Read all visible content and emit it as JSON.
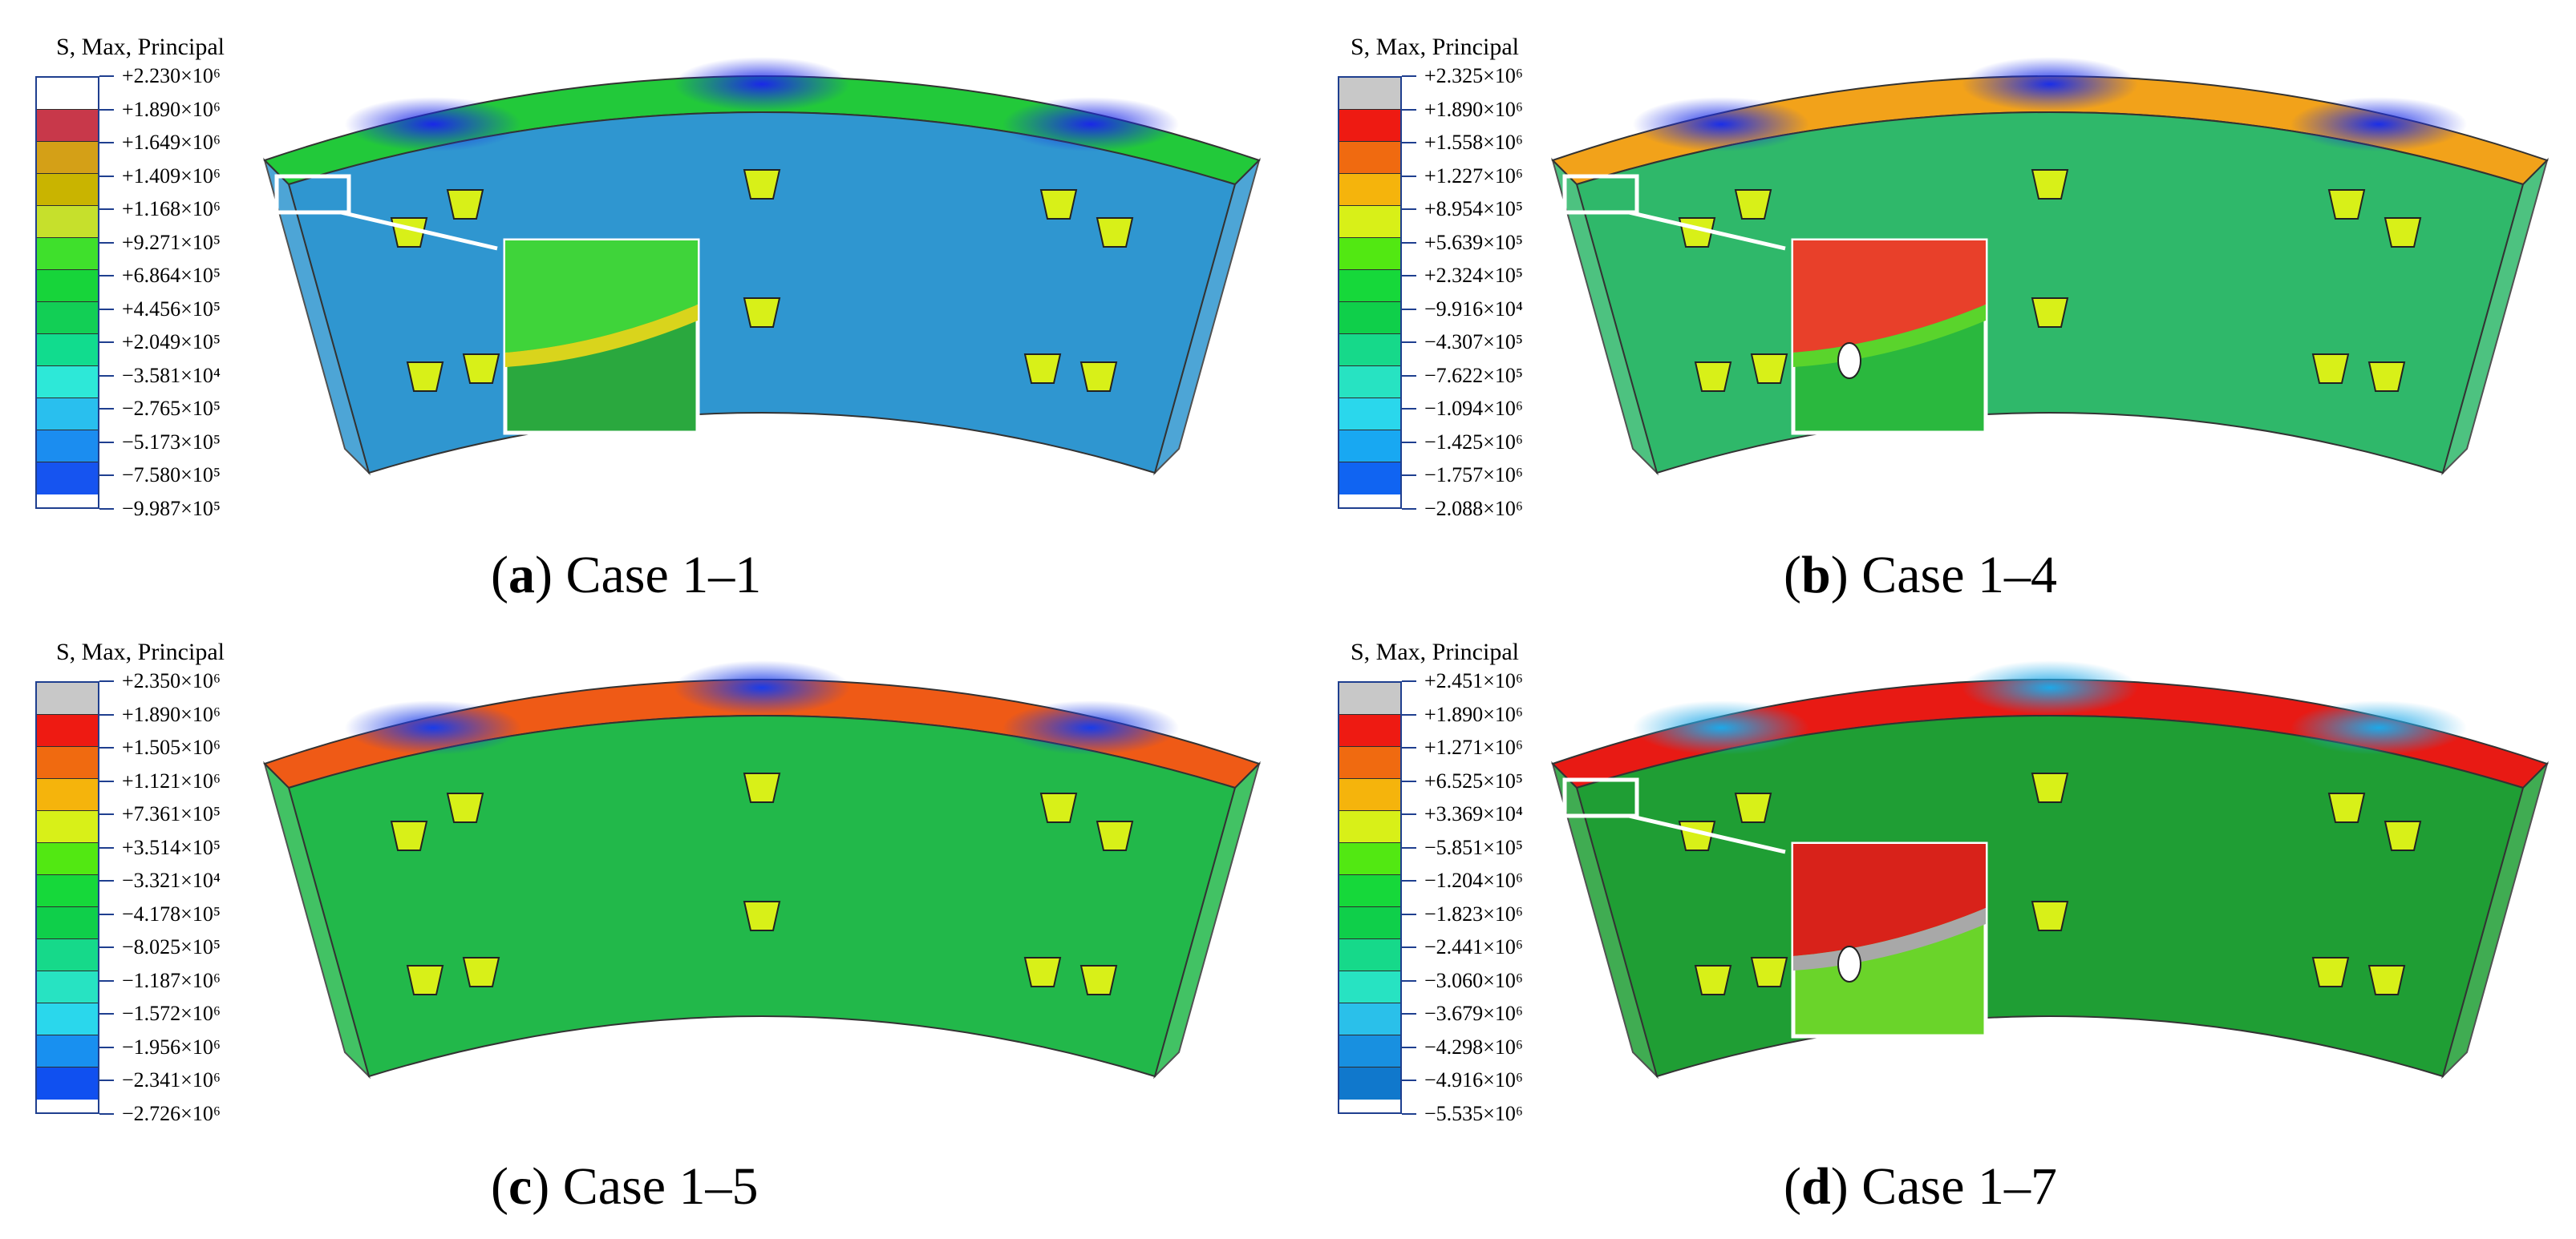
{
  "panels": [
    {
      "letter": "a",
      "case": "Case 1–1",
      "legend_title": "S, Max, Principal",
      "labels": [
        "+2.230×10⁶",
        "+1.890×10⁶",
        "+1.649×10⁶",
        "+1.409×10⁶",
        "+1.168×10⁶",
        "+9.271×10⁵",
        "+6.864×10⁵",
        "+4.456×10⁵",
        "+2.049×10⁵",
        "−3.581×10⁴",
        "−2.765×10⁵",
        "−5.173×10⁵",
        "−7.580×10⁵",
        "−9.987×10⁵"
      ],
      "colors": [
        "#ffffff",
        "#c8384a",
        "#d4a017",
        "#c9b400",
        "#c6e02c",
        "#3fe02c",
        "#17d43a",
        "#12cf55",
        "#11dc8e",
        "#2de8d8",
        "#29bfee",
        "#1b8df0",
        "#1654f0",
        "#0a1fe8"
      ],
      "top_color": "#22c93a",
      "body_color": "#2f96d0",
      "hot_color": "#1a28e8",
      "inset_colors": [
        "#3fd43a",
        "#d9d41c",
        "#2aa83e"
      ],
      "has_inset_hole": false
    },
    {
      "letter": "b",
      "case": "Case 1–4",
      "legend_title": "S, Max, Principal",
      "labels": [
        "+2.325×10⁶",
        "+1.890×10⁶",
        "+1.558×10⁶",
        "+1.227×10⁶",
        "+8.954×10⁵",
        "+5.639×10⁵",
        "+2.324×10⁵",
        "−9.916×10⁴",
        "−4.307×10⁵",
        "−7.622×10⁵",
        "−1.094×10⁶",
        "−1.425×10⁶",
        "−1.757×10⁶",
        "−2.088×10⁶"
      ],
      "colors": [
        "#c8c8c8",
        "#ee1a12",
        "#f06a10",
        "#f5b40c",
        "#d8f018",
        "#52e812",
        "#16d83a",
        "#0fcf4a",
        "#16d98a",
        "#27e3c2",
        "#2ad7ec",
        "#18a8f2",
        "#1064f2",
        "#0a22ee"
      ],
      "top_color": "#f2a21a",
      "body_color": "#2fb86a",
      "hot_color": "#1a2ee8",
      "inset_colors": [
        "#e8402a",
        "#5ad42c",
        "#2ab83e"
      ],
      "has_inset_hole": true
    },
    {
      "letter": "c",
      "case": "Case 1–5",
      "legend_title": "S, Max, Principal",
      "labels": [
        "+2.350×10⁶",
        "+1.890×10⁶",
        "+1.505×10⁶",
        "+1.121×10⁶",
        "+7.361×10⁵",
        "+3.514×10⁵",
        "−3.321×10⁴",
        "−4.178×10⁵",
        "−8.025×10⁵",
        "−1.187×10⁶",
        "−1.572×10⁶",
        "−1.956×10⁶",
        "−2.341×10⁶",
        "−2.726×10⁶"
      ],
      "colors": [
        "#c8c8c8",
        "#ee1a12",
        "#f06a10",
        "#f5b40c",
        "#d8f018",
        "#52e812",
        "#16d83a",
        "#0fcf4a",
        "#16d98a",
        "#27e3c2",
        "#2ad7ec",
        "#1890f0",
        "#1050f0",
        "#0a1aee"
      ],
      "top_color": "#ef5a16",
      "body_color": "#22b84a",
      "hot_color": "#1a3ce8",
      "inset_colors": [],
      "has_inset_hole": false
    },
    {
      "letter": "d",
      "case": "Case 1–7",
      "legend_title": "S, Max, Principal",
      "labels": [
        "+2.451×10⁶",
        "+1.890×10⁶",
        "+1.271×10⁶",
        "+6.525×10⁵",
        "+3.369×10⁴",
        "−5.851×10⁵",
        "−1.204×10⁶",
        "−1.823×10⁶",
        "−2.441×10⁶",
        "−3.060×10⁶",
        "−3.679×10⁶",
        "−4.298×10⁶",
        "−4.916×10⁶",
        "−5.535×10⁶"
      ],
      "colors": [
        "#c8c8c8",
        "#ee1a12",
        "#f06a10",
        "#f5b40c",
        "#d8f018",
        "#52e812",
        "#16d83a",
        "#0fcf4a",
        "#16d98a",
        "#27e3c2",
        "#2ac0ea",
        "#1890e0",
        "#1078cc",
        "#0a5ca8"
      ],
      "top_color": "#e81a14",
      "body_color": "#1f9e34",
      "hot_color": "#1ea8e8",
      "inset_colors": [
        "#d8221a",
        "#a8a8a8",
        "#6ad42a"
      ],
      "has_inset_hole": true
    }
  ]
}
